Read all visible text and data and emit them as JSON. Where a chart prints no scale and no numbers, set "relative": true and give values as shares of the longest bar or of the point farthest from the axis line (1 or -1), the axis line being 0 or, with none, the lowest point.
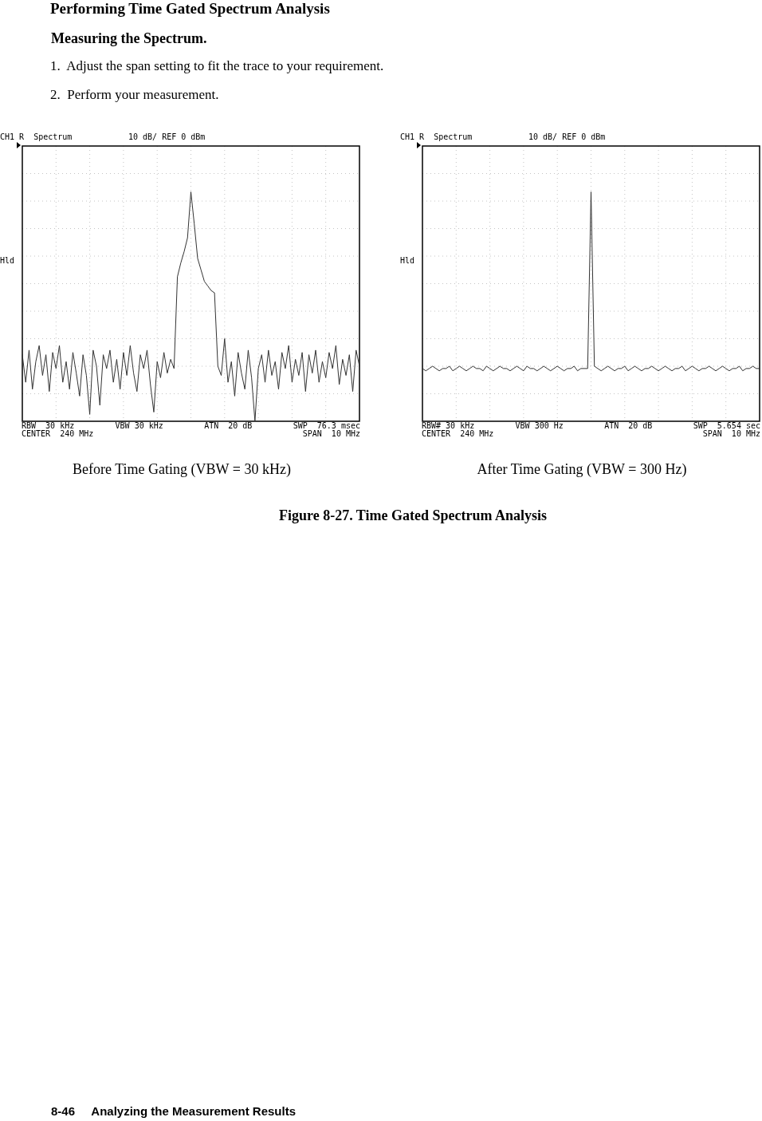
{
  "chart_data": [
    {
      "type": "line",
      "title": "CH1 R  Spectrum",
      "subtitle": "10 dB/ REF 0 dBm",
      "xlabel": "Before Time Gating (VBW = 30 kHz)",
      "annotations": [
        "Hld",
        "RBW  30 kHz",
        "VBW 30 kHz",
        "ATN  20 dB",
        "SWP  76.3 msec",
        "CENTER  240 MHz",
        "SPAN  10 MHz"
      ],
      "categories": [
        null,
        null,
        null,
        null,
        null,
        null,
        null,
        null,
        null,
        null,
        null,
        null,
        null,
        null,
        null,
        null,
        null,
        null,
        null,
        null,
        null,
        null,
        null,
        null,
        null,
        null,
        null,
        null,
        null,
        null,
        null,
        null,
        null,
        null,
        null,
        null,
        null,
        null,
        null,
        null,
        null,
        null,
        null,
        null,
        null,
        null,
        null,
        null,
        null,
        null,
        null,
        null,
        null,
        null,
        null,
        null,
        null,
        null,
        null,
        null,
        null,
        null,
        null,
        null,
        null,
        null,
        null,
        null,
        null,
        null,
        null,
        null,
        null,
        null,
        null,
        null,
        null,
        null,
        null,
        null,
        null,
        null,
        null,
        null,
        null,
        null,
        null,
        null,
        null,
        null,
        null,
        null,
        null,
        null,
        null,
        null,
        null,
        null,
        null,
        null,
        null
      ],
      "relative": true,
      "grid": true,
      "marker": "none",
      "line_style": "solid",
      "series": [
        {
          "color": "#333333",
          "values": [
            0.29,
            0.17,
            0.31,
            0.14,
            0.26,
            0.33,
            0.2,
            0.29,
            0.13,
            0.3,
            0.23,
            0.33,
            0.17,
            0.26,
            0.14,
            0.3,
            0.21,
            0.11,
            0.29,
            0.2,
            0.03,
            0.31,
            0.24,
            0.07,
            0.29,
            0.23,
            0.31,
            0.17,
            0.27,
            0.14,
            0.3,
            0.2,
            0.33,
            0.21,
            0.13,
            0.29,
            0.23,
            0.31,
            0.16,
            0.04,
            0.26,
            0.19,
            0.3,
            0.21,
            0.27,
            0.23,
            0.63,
            0.69,
            0.74,
            0.8,
            1,
            0.86,
            0.71,
            0.66,
            0.61,
            0.59,
            0.57,
            0.56,
            0.24,
            0.2,
            0.36,
            0.17,
            0.26,
            0.11,
            0.3,
            0.21,
            0.14,
            0.31,
            0.19,
            0,
            0.23,
            0.29,
            0.17,
            0.31,
            0.2,
            0.26,
            0.14,
            0.3,
            0.23,
            0.33,
            0.17,
            0.27,
            0.2,
            0.3,
            0.13,
            0.29,
            0.21,
            0.31,
            0.17,
            0.26,
            0.19,
            0.3,
            0.23,
            0.33,
            0.16,
            0.27,
            0.2,
            0.29,
            0.13,
            0.31,
            0.24
          ]
        }
      ]
    },
    {
      "type": "line",
      "title": "CH1 R  Spectrum",
      "subtitle": "10 dB/ REF 0 dBm",
      "xlabel": "After Time Gating (VBW = 300 Hz)",
      "annotations": [
        "Hld",
        "RBW# 30 kHz",
        "VBW 300 Hz",
        "ATN  20 dB",
        "SWP  5.654 sec",
        "CENTER  240 MHz",
        "SPAN  10 MHz"
      ],
      "categories": [
        null,
        null,
        null,
        null,
        null,
        null,
        null,
        null,
        null,
        null,
        null,
        null,
        null,
        null,
        null,
        null,
        null,
        null,
        null,
        null,
        null,
        null,
        null,
        null,
        null,
        null,
        null,
        null,
        null,
        null,
        null,
        null,
        null,
        null,
        null,
        null,
        null,
        null,
        null,
        null,
        null,
        null,
        null,
        null,
        null,
        null,
        null,
        null,
        null,
        null,
        null,
        null,
        null,
        null,
        null,
        null,
        null,
        null,
        null,
        null,
        null,
        null,
        null,
        null,
        null,
        null,
        null,
        null,
        null,
        null,
        null,
        null,
        null,
        null,
        null,
        null,
        null,
        null,
        null,
        null,
        null,
        null,
        null,
        null,
        null,
        null,
        null,
        null,
        null,
        null,
        null,
        null,
        null,
        null,
        null,
        null,
        null,
        null,
        null,
        null,
        null
      ],
      "relative": true,
      "grid": true,
      "marker": "none",
      "line_style": "solid",
      "series": [
        {
          "color": "#333333",
          "values": [
            0.23,
            0.22,
            0.23,
            0.24,
            0.23,
            0.22,
            0.23,
            0.23,
            0.24,
            0.22,
            0.23,
            0.24,
            0.23,
            0.22,
            0.23,
            0.24,
            0.23,
            0.23,
            0.22,
            0.24,
            0.23,
            0.22,
            0.23,
            0.24,
            0.23,
            0.23,
            0.22,
            0.23,
            0.24,
            0.23,
            0.22,
            0.24,
            0.23,
            0.23,
            0.22,
            0.23,
            0.24,
            0.23,
            0.22,
            0.23,
            0.24,
            0.23,
            0.22,
            0.23,
            0.23,
            0.24,
            0.22,
            0.23,
            0.23,
            0.23,
            1,
            0.24,
            0.23,
            0.22,
            0.23,
            0.24,
            0.23,
            0.22,
            0.23,
            0.23,
            0.24,
            0.22,
            0.23,
            0.24,
            0.23,
            0.22,
            0.23,
            0.23,
            0.24,
            0.23,
            0.22,
            0.23,
            0.24,
            0.23,
            0.22,
            0.23,
            0.23,
            0.24,
            0.22,
            0.23,
            0.24,
            0.23,
            0.22,
            0.23,
            0.23,
            0.24,
            0.23,
            0.22,
            0.23,
            0.24,
            0.23,
            0.22,
            0.23,
            0.23,
            0.24,
            0.22,
            0.23,
            0.23,
            0.24,
            0.23,
            0.23
          ]
        }
      ]
    },
    {
      "type": "other",
      "title": "Figure 8-27. Time Gated Spectrum Analysis",
      "annotations": [
        "Performing Time Gated Spectrum Analysis",
        "Measuring the Spectrum.",
        "1.  Adjust the span setting to fit the trace to your requirement.",
        "2.  Perform your measurement.",
        "8-46     Analyzing the Measurement Results"
      ]
    }
  ]
}
